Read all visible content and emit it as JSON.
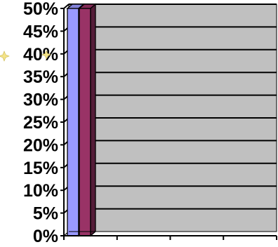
{
  "chart_data": {
    "type": "bar",
    "title": "",
    "xlabel": "",
    "ylabel": "",
    "categories": [
      ""
    ],
    "series": [
      {
        "color": "#9999ff",
        "values": [
          50
        ]
      },
      {
        "color": "#993366",
        "values": [
          50
        ]
      }
    ],
    "ylim": [
      0,
      50
    ],
    "y_ticks": [
      "0%",
      "5%",
      "10%",
      "15%",
      "20%",
      "25%",
      "30%",
      "35%",
      "40%",
      "45%",
      "50%"
    ],
    "y_tick_values": [
      0,
      5,
      10,
      15,
      20,
      25,
      30,
      35,
      40,
      45,
      50
    ],
    "grid": true,
    "plot_background": "#c0c0c0",
    "style": "3d"
  }
}
